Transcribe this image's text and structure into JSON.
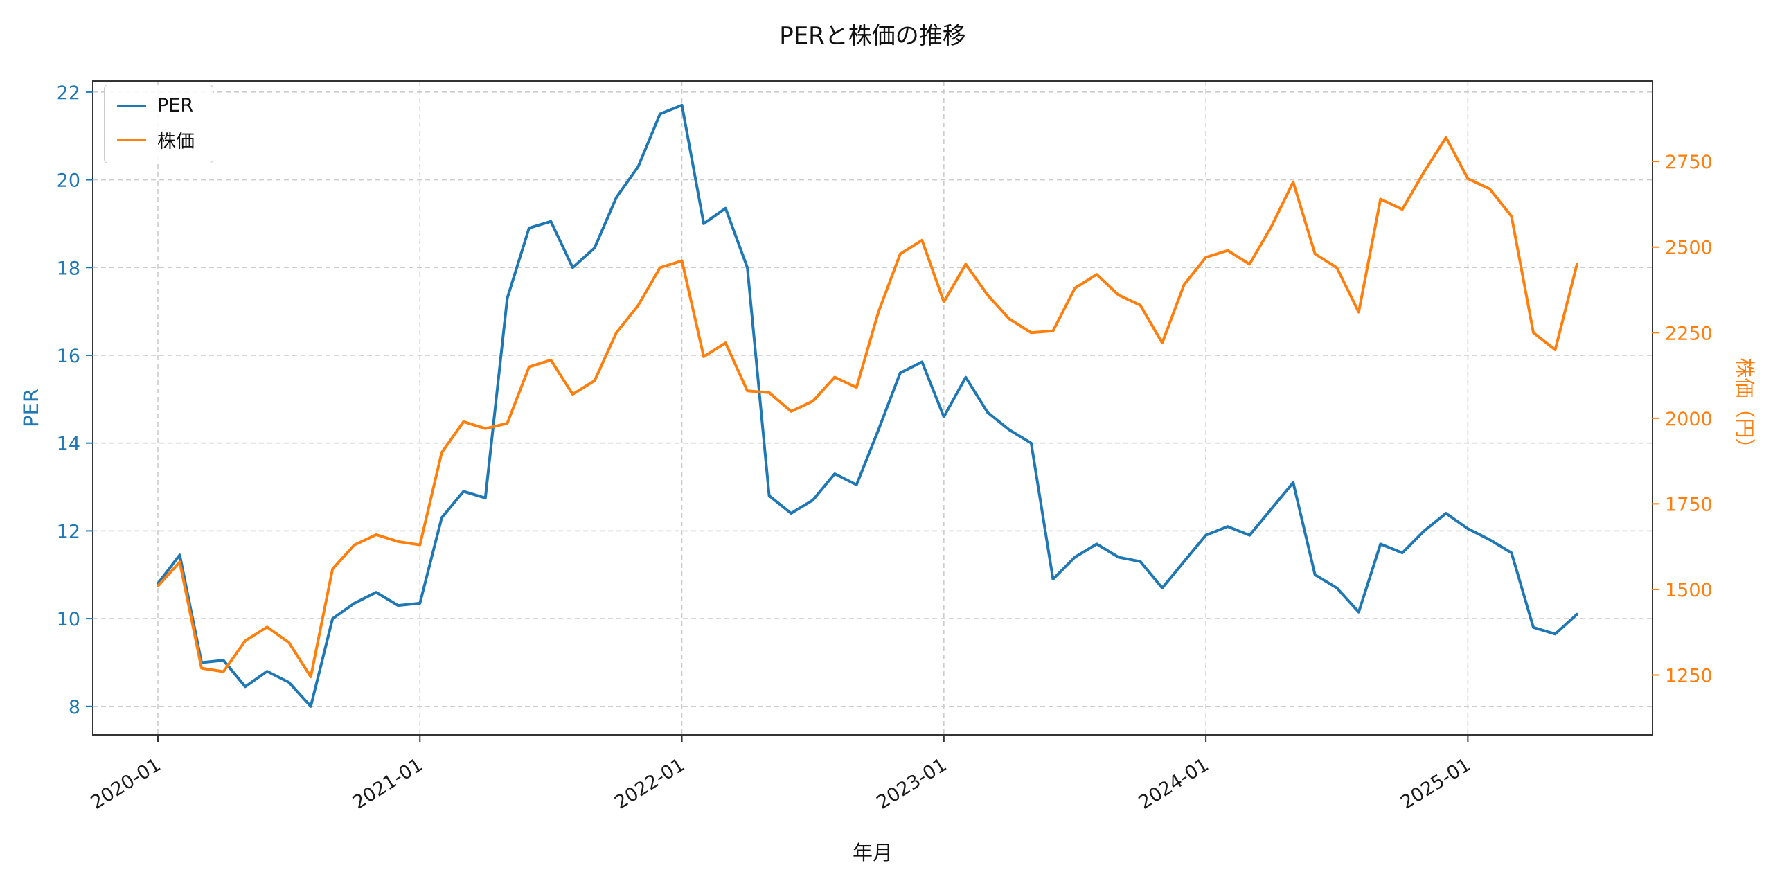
{
  "chart_data": {
    "type": "line",
    "title": "PERと株価の推移",
    "xlabel": "年月",
    "x": [
      "2020-01",
      "2020-02",
      "2020-03",
      "2020-04",
      "2020-05",
      "2020-06",
      "2020-07",
      "2020-08",
      "2020-09",
      "2020-10",
      "2020-11",
      "2020-12",
      "2021-01",
      "2021-02",
      "2021-03",
      "2021-04",
      "2021-05",
      "2021-06",
      "2021-07",
      "2021-08",
      "2021-09",
      "2021-10",
      "2021-11",
      "2021-12",
      "2022-01",
      "2022-02",
      "2022-03",
      "2022-04",
      "2022-05",
      "2022-06",
      "2022-07",
      "2022-08",
      "2022-09",
      "2022-10",
      "2022-11",
      "2022-12",
      "2023-01",
      "2023-02",
      "2023-03",
      "2023-04",
      "2023-05",
      "2023-06",
      "2023-07",
      "2023-08",
      "2023-09",
      "2023-10",
      "2023-11",
      "2023-12",
      "2024-01",
      "2024-02",
      "2024-03",
      "2024-04",
      "2024-05",
      "2024-06",
      "2024-07",
      "2024-08",
      "2024-09",
      "2024-10",
      "2024-11",
      "2024-12",
      "2025-01",
      "2025-02",
      "2025-03",
      "2025-04",
      "2025-05",
      "2025-06"
    ],
    "x_ticks": [
      "2020-01",
      "2021-01",
      "2022-01",
      "2023-01",
      "2024-01",
      "2025-01"
    ],
    "series": [
      {
        "name": "PER",
        "axis": "left",
        "color": "#1f77b4",
        "values": [
          10.8,
          11.45,
          9.0,
          9.05,
          8.45,
          8.8,
          8.55,
          8.0,
          10.0,
          10.35,
          10.6,
          10.3,
          10.35,
          12.3,
          12.9,
          12.75,
          17.3,
          18.9,
          19.05,
          18.0,
          18.45,
          19.6,
          20.3,
          21.5,
          21.7,
          19.0,
          19.35,
          18.0,
          12.8,
          12.4,
          12.7,
          13.3,
          13.05,
          14.3,
          15.6,
          15.85,
          14.6,
          15.5,
          14.7,
          14.3,
          14.0,
          10.9,
          11.4,
          11.7,
          11.4,
          11.3,
          10.7,
          11.3,
          11.9,
          12.1,
          11.9,
          12.5,
          13.1,
          11.0,
          10.7,
          10.15,
          11.7,
          11.5,
          12.0,
          12.4,
          12.05,
          11.8,
          11.5,
          9.8,
          9.65,
          10.1
        ]
      },
      {
        "name": "株価",
        "axis": "right",
        "color": "#ff7f0e",
        "values": [
          1510,
          1580,
          1270,
          1260,
          1350,
          1390,
          1345,
          1245,
          1560,
          1630,
          1660,
          1640,
          1630,
          1900,
          1990,
          1970,
          1985,
          2150,
          2170,
          2070,
          2110,
          2250,
          2330,
          2440,
          2460,
          2180,
          2220,
          2080,
          2075,
          2020,
          2050,
          2120,
          2090,
          2310,
          2480,
          2520,
          2340,
          2450,
          2360,
          2290,
          2250,
          2255,
          2380,
          2420,
          2360,
          2330,
          2220,
          2390,
          2470,
          2490,
          2450,
          2560,
          2690,
          2480,
          2440,
          2310,
          2640,
          2610,
          2720,
          2820,
          2700,
          2670,
          2590,
          2250,
          2200,
          2450
        ]
      }
    ],
    "left_axis": {
      "label": "PER",
      "color": "#1f77b4",
      "ticks": [
        8,
        10,
        12,
        14,
        16,
        18,
        20,
        22
      ],
      "range": [
        7.35,
        22.25
      ]
    },
    "right_axis": {
      "label": "株価（円）",
      "color": "#ff7f0e",
      "ticks": [
        1250,
        1500,
        1750,
        2000,
        2250,
        2500,
        2750
      ],
      "range": [
        1075,
        2985
      ]
    },
    "legend": {
      "position": "upper-left"
    },
    "grid": {
      "visible": true,
      "style": "dashed",
      "color": "#cccccc"
    }
  }
}
